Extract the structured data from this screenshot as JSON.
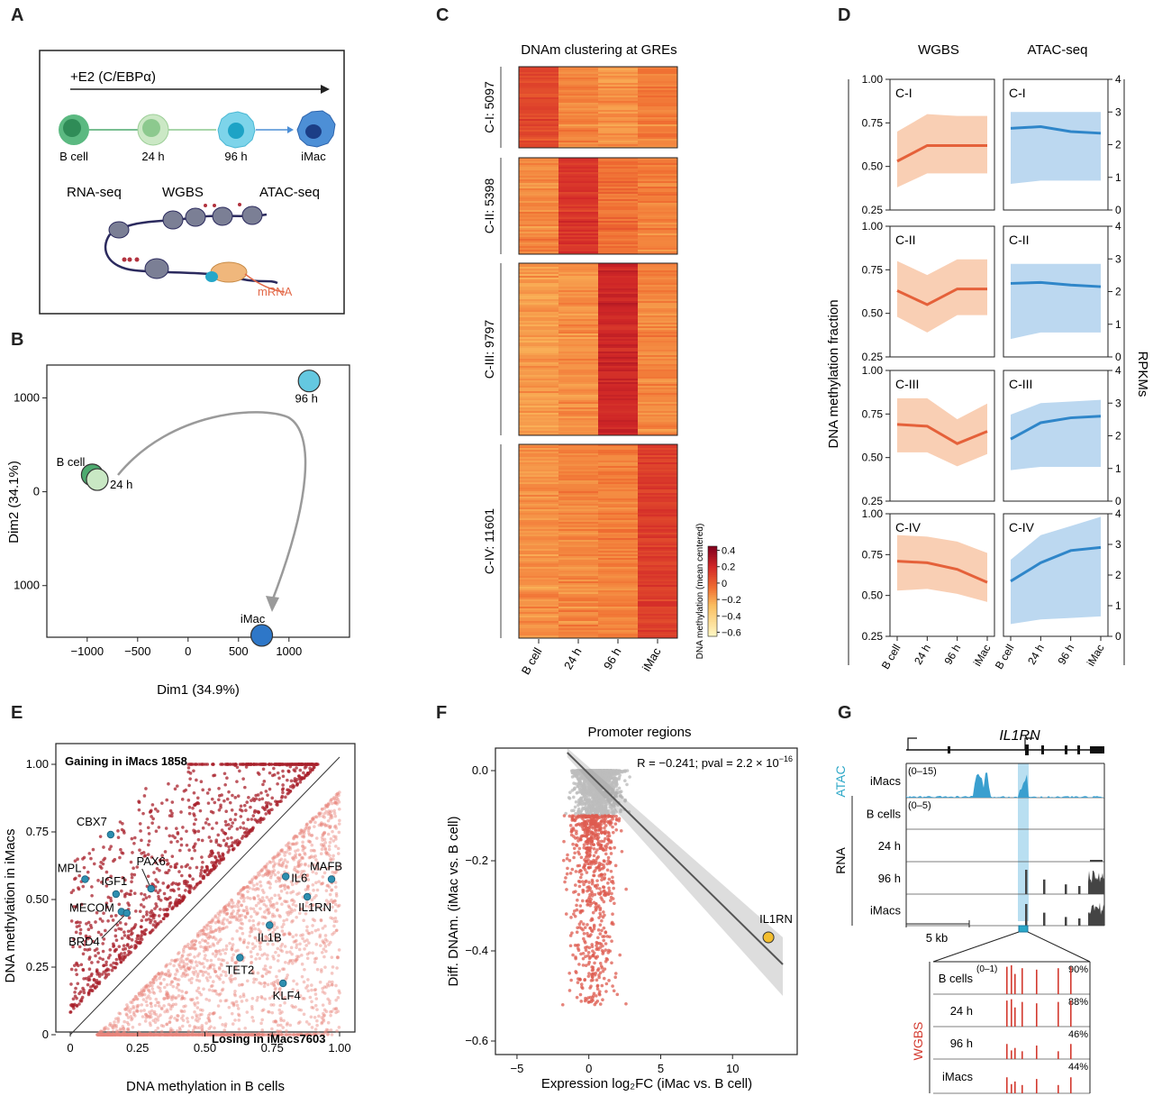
{
  "panels": {
    "A": "A",
    "B": "B",
    "C": "C",
    "D": "D",
    "E": "E",
    "F": "F",
    "G": "G"
  },
  "panelA": {
    "treatment": "+E2 (C/EBPα)",
    "stages": [
      "B cell",
      "24 h",
      "96 h",
      "iMac"
    ],
    "assays": [
      "RNA-seq",
      "WGBS",
      "ATAC-seq"
    ],
    "mrna_label": "mRNA",
    "colors": {
      "bcell": "#4daa6f",
      "h24": "#a9d7a6",
      "h96": "#58c4dc",
      "imac": "#2e6cbf"
    }
  },
  "chart_data": [
    {
      "id": "B",
      "type": "scatter",
      "xlabel": "Dim1 (34.9%)",
      "ylabel": "Dim2 (34.1%)",
      "xticks": [
        -1000,
        -500,
        0,
        500,
        1000
      ],
      "xtick_labels": [
        "−1000",
        "−500",
        "0",
        "500",
        "1000"
      ],
      "yticks": [
        1000,
        0,
        -1000
      ],
      "ytick_labels": [
        "1000",
        "0",
        "1000"
      ],
      "xlim": [
        -1400,
        1600
      ],
      "ylim": [
        -1550,
        1350
      ],
      "points": [
        {
          "name": "B cell",
          "x": -950,
          "y": 180,
          "color": "#4daa6f"
        },
        {
          "name": "24 h",
          "x": -900,
          "y": 130,
          "color": "#c9e8c4"
        },
        {
          "name": "96 h",
          "x": 1200,
          "y": 1180,
          "color": "#64c8e0"
        },
        {
          "name": "iMac",
          "x": 730,
          "y": -1530,
          "color": "#2e77c8"
        }
      ]
    },
    {
      "id": "C",
      "type": "heatmap",
      "title": "DNAm clustering at GREs",
      "columns": [
        "B cell",
        "24 h",
        "96 h",
        "iMac"
      ],
      "clusters": [
        {
          "name": "C-I: 5097",
          "means": [
            0.08,
            -0.12,
            -0.15,
            -0.1
          ]
        },
        {
          "name": "C-II: 5398",
          "means": [
            -0.12,
            0.15,
            -0.05,
            -0.1
          ]
        },
        {
          "name": "C-III: 9797",
          "means": [
            -0.18,
            -0.15,
            0.2,
            -0.12
          ]
        },
        {
          "name": "C-IV: 11601",
          "means": [
            -0.15,
            -0.12,
            -0.1,
            0.12
          ]
        }
      ],
      "colorbar_label": "DNA methylation (mean centered)",
      "colorbar_ticks": [
        "0.4",
        "0.2",
        "0",
        "−0.2",
        "−0.4",
        "−0.6"
      ],
      "clim": [
        -0.65,
        0.45
      ]
    },
    {
      "id": "D",
      "type": "line",
      "col_titles": [
        "WGBS",
        "ATAC-seq"
      ],
      "ylabel_left": "DNA methylation fraction",
      "ylabel_right": "RPKMs",
      "x": [
        "B cell",
        "24 h",
        "96 h",
        "iMac"
      ],
      "left_ticks": [
        "1.00",
        "0.75",
        "0.50",
        "0.25"
      ],
      "right_ticks": [
        "4",
        "3",
        "2",
        "1",
        "0"
      ],
      "left_lim": [
        0.25,
        1.0
      ],
      "right_lim": [
        0,
        4
      ],
      "rows": [
        {
          "name": "C-I",
          "wgbs": [
            0.53,
            0.62,
            0.62,
            0.62
          ],
          "wgbs_lo": [
            0.38,
            0.46,
            0.46,
            0.46
          ],
          "wgbs_hi": [
            0.7,
            0.8,
            0.79,
            0.79
          ],
          "atac": [
            2.5,
            2.55,
            2.4,
            2.35
          ],
          "atac_lo": [
            0.8,
            0.9,
            0.9,
            0.9
          ],
          "atac_hi": [
            3.0,
            3.0,
            3.0,
            3.0
          ]
        },
        {
          "name": "C-II",
          "wgbs": [
            0.63,
            0.55,
            0.64,
            0.64
          ],
          "wgbs_lo": [
            0.48,
            0.39,
            0.49,
            0.49
          ],
          "wgbs_hi": [
            0.8,
            0.72,
            0.81,
            0.81
          ],
          "atac": [
            2.25,
            2.28,
            2.2,
            2.15
          ],
          "atac_lo": [
            0.55,
            0.75,
            0.75,
            0.75
          ],
          "atac_hi": [
            2.85,
            2.85,
            2.85,
            2.85
          ]
        },
        {
          "name": "C-III",
          "wgbs": [
            0.69,
            0.68,
            0.58,
            0.65
          ],
          "wgbs_lo": [
            0.53,
            0.53,
            0.45,
            0.52
          ],
          "wgbs_hi": [
            0.84,
            0.84,
            0.72,
            0.81
          ],
          "atac": [
            1.9,
            2.4,
            2.55,
            2.6
          ],
          "atac_lo": [
            0.95,
            1.05,
            1.05,
            1.05
          ],
          "atac_hi": [
            2.65,
            3.0,
            3.05,
            3.1
          ]
        },
        {
          "name": "C-IV",
          "wgbs": [
            0.71,
            0.7,
            0.66,
            0.58
          ],
          "wgbs_lo": [
            0.53,
            0.54,
            0.51,
            0.46
          ],
          "wgbs_hi": [
            0.87,
            0.86,
            0.83,
            0.76
          ],
          "atac": [
            1.8,
            2.4,
            2.8,
            2.9
          ],
          "atac_lo": [
            0.4,
            0.55,
            0.6,
            0.65
          ],
          "atac_hi": [
            2.5,
            3.3,
            3.6,
            3.9
          ]
        }
      ]
    },
    {
      "id": "E",
      "type": "scatter",
      "xlabel": "DNA methylation in B cells",
      "ylabel": "DNA methylation in iMacs",
      "xticks": [
        "0",
        "0.25",
        "0.50",
        "0.75",
        "1.00"
      ],
      "yticks": [
        "1.00",
        "0.75",
        "0.50",
        "0.25",
        "0"
      ],
      "gain_label": "Gaining in iMacs 1858",
      "lose_label": "Losing in iMacs7603",
      "genes": [
        {
          "name": "CBX7",
          "x": 0.15,
          "y": 0.74
        },
        {
          "name": "PAX6",
          "x": 0.3,
          "y": 0.54
        },
        {
          "name": "MPL",
          "x": 0.055,
          "y": 0.575
        },
        {
          "name": "IGF1",
          "x": 0.17,
          "y": 0.52
        },
        {
          "name": "MECOM",
          "x": 0.19,
          "y": 0.455
        },
        {
          "name": "BRD4",
          "x": 0.21,
          "y": 0.45
        },
        {
          "name": "IL6",
          "x": 0.8,
          "y": 0.585
        },
        {
          "name": "MAFB",
          "x": 0.97,
          "y": 0.575
        },
        {
          "name": "IL1RN",
          "x": 0.88,
          "y": 0.51
        },
        {
          "name": "IL1B",
          "x": 0.74,
          "y": 0.405
        },
        {
          "name": "TET2",
          "x": 0.63,
          "y": 0.285
        },
        {
          "name": "KLF4",
          "x": 0.79,
          "y": 0.19
        }
      ]
    },
    {
      "id": "F",
      "type": "scatter",
      "title": "Promoter regions",
      "stat_label": "R = −0.241; pval = 2.2 × 10",
      "stat_exp": "−16",
      "xlabel": "Expression log₂FC  (iMac vs. B cell)",
      "ylabel": "Diff. DNAm. (iMac vs. B cell)",
      "xticks": [
        -5,
        0,
        5,
        10
      ],
      "xtick_labels": [
        "−5",
        "0",
        "5",
        "10"
      ],
      "yticks": [
        0.0,
        -0.2,
        -0.4,
        -0.6
      ],
      "ytick_labels": [
        "0.0",
        "−0.2",
        "−0.4",
        "−0.6"
      ],
      "xlim": [
        -6.5,
        14.5
      ],
      "ylim": [
        -0.63,
        0.05
      ],
      "fit": {
        "x0": -1.5,
        "y0": 0.04,
        "x1": 13.5,
        "y1": -0.43
      },
      "highlight": {
        "name": "IL1RN",
        "x": 12.5,
        "y": -0.37,
        "color": "#f2bd2e"
      }
    }
  ],
  "panelG": {
    "gene": "IL1RN",
    "atac_label": "ATAC",
    "rna_label": "RNA",
    "wgbs_label": "WGBS",
    "tracks": [
      {
        "label": "iMacs",
        "range": "(0–15)"
      },
      {
        "label": "B cells",
        "range": "(0–5)"
      },
      {
        "label": "24 h",
        "range": ""
      },
      {
        "label": "96 h",
        "range": ""
      },
      {
        "label": "iMacs",
        "range": ""
      }
    ],
    "scale_label": "5 kb",
    "wgbs_tracks": [
      {
        "label": "B cells",
        "range": "(0–1)",
        "pct": "90%"
      },
      {
        "label": "24 h",
        "range": "",
        "pct": "88%"
      },
      {
        "label": "96 h",
        "range": "",
        "pct": "46%"
      },
      {
        "label": "iMacs",
        "range": "",
        "pct": "44%"
      }
    ]
  }
}
